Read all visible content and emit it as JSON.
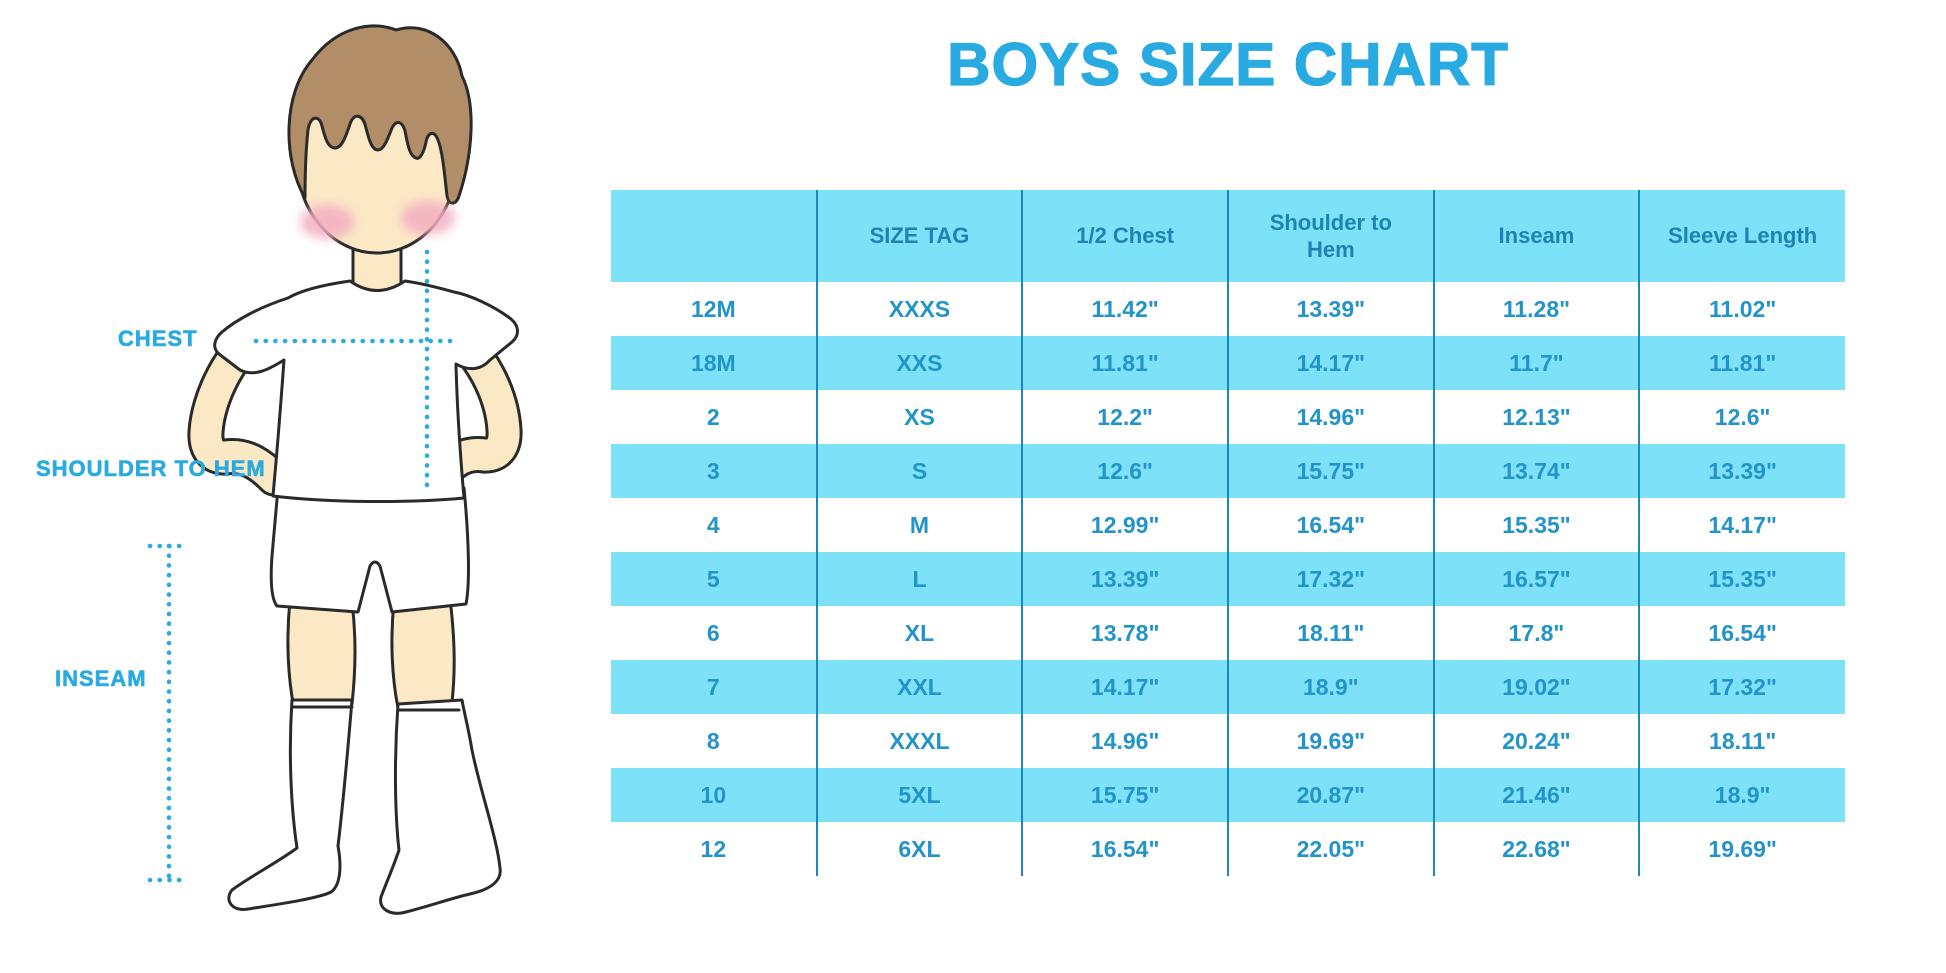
{
  "title": "BOYS SIZE CHART",
  "figure": {
    "chest_label": "CHEST",
    "shoulder_label": "SHOULDER TO HEM",
    "inseam_label": "INSEAM"
  },
  "colors": {
    "accent_blue": "#29abe2",
    "table_stripe": "#7de1f8",
    "table_cell_text": "#2394c9",
    "table_header_text": "#1d84b2",
    "column_separator": "#1c87b8",
    "skin": "#fbe8c5",
    "hair": "#b28e68",
    "cheek": "#f3aec2"
  },
  "chart_data": {
    "type": "table",
    "title": "BOYS SIZE CHART",
    "columns": [
      "",
      "SIZE TAG",
      "1/2 Chest",
      "Shoulder to Hem",
      "Inseam",
      "Sleeve Length"
    ],
    "rows": [
      [
        "12M",
        "XXXS",
        "11.42\"",
        "13.39\"",
        "11.28\"",
        "11.02\""
      ],
      [
        "18M",
        "XXS",
        "11.81\"",
        "14.17\"",
        "11.7\"",
        "11.81\""
      ],
      [
        "2",
        "XS",
        "12.2\"",
        "14.96\"",
        "12.13\"",
        "12.6\""
      ],
      [
        "3",
        "S",
        "12.6\"",
        "15.75\"",
        "13.74\"",
        "13.39\""
      ],
      [
        "4",
        "M",
        "12.99\"",
        "16.54\"",
        "15.35\"",
        "14.17\""
      ],
      [
        "5",
        "L",
        "13.39\"",
        "17.32\"",
        "16.57\"",
        "15.35\""
      ],
      [
        "6",
        "XL",
        "13.78\"",
        "18.11\"",
        "17.8\"",
        "16.54\""
      ],
      [
        "7",
        "XXL",
        "14.17\"",
        "18.9\"",
        "19.02\"",
        "17.32\""
      ],
      [
        "8",
        "XXXL",
        "14.96\"",
        "19.69\"",
        "20.24\"",
        "18.11\""
      ],
      [
        "10",
        "5XL",
        "15.75\"",
        "20.87\"",
        "21.46\"",
        "18.9\""
      ],
      [
        "12",
        "6XL",
        "16.54\"",
        "22.05\"",
        "22.68\"",
        "19.69\""
      ]
    ],
    "layout": {
      "grid": "vertical column separators only",
      "striping": "header and alternating data rows (2nd, 4th, ...) in light cyan",
      "legend": "none"
    }
  }
}
